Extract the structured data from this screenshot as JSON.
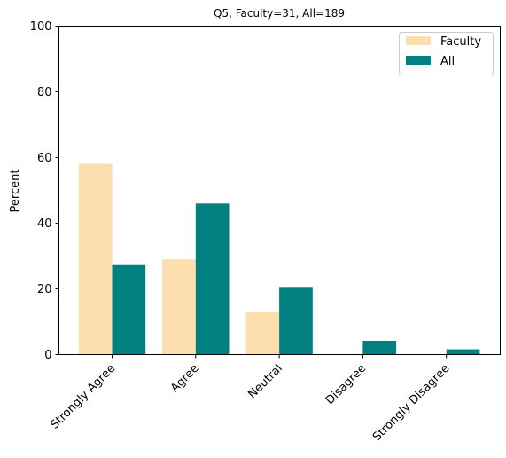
{
  "chart_data": {
    "type": "bar",
    "title": "Q5, Faculty=31, All=189",
    "xlabel": "",
    "ylabel": "Percent",
    "ylim": [
      0,
      100
    ],
    "yticks": [
      0,
      20,
      40,
      60,
      80,
      100
    ],
    "grid": false,
    "legend_position": "top-right",
    "categories": [
      "Strongly Agree",
      "Agree",
      "Neutral",
      "Disagree",
      "Strongly Disagree"
    ],
    "series": [
      {
        "name": "Faculty",
        "color": "#fddeaf",
        "values": [
          58.1,
          29.0,
          12.9,
          0,
          0
        ]
      },
      {
        "name": "All",
        "color": "#008080",
        "values": [
          27.5,
          46.0,
          20.6,
          4.2,
          1.6
        ]
      }
    ]
  }
}
